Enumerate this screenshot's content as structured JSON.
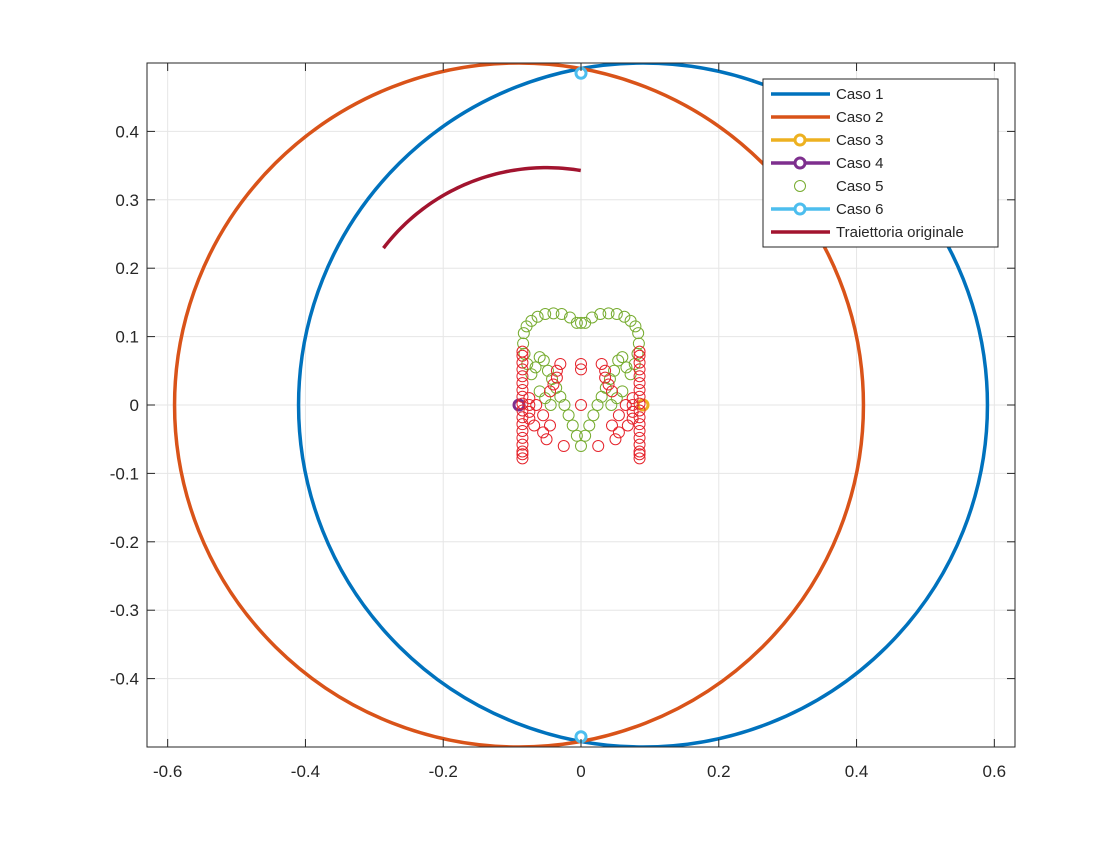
{
  "chart_data": {
    "type": "line",
    "title": "",
    "xlabel": "",
    "ylabel": "",
    "xlim": [
      -0.63,
      0.63
    ],
    "ylim": [
      -0.5,
      0.5
    ],
    "x_ticks": [
      -0.6,
      -0.4,
      -0.2,
      0,
      0.2,
      0.4,
      0.6
    ],
    "y_ticks": [
      -0.4,
      -0.3,
      -0.2,
      -0.1,
      0,
      0.1,
      0.2,
      0.3,
      0.4
    ],
    "x_tick_labels": [
      "-0.6",
      "-0.4",
      "-0.2",
      "0",
      "0.2",
      "0.4",
      "0.6"
    ],
    "y_tick_labels": [
      "-0.4",
      "-0.3",
      "-0.2",
      "-0.1",
      "0",
      "0.1",
      "0.2",
      "0.3",
      "0.4"
    ],
    "grid": true,
    "legend_position": "top-right",
    "series": [
      {
        "name": "Caso 1",
        "color": "#0072BD",
        "style": "line",
        "shape": "circle",
        "center": [
          0.09,
          0
        ],
        "radius": 0.5
      },
      {
        "name": "Caso 2",
        "color": "#D95319",
        "style": "line",
        "shape": "circle",
        "center": [
          -0.09,
          0
        ],
        "radius": 0.5
      },
      {
        "name": "Caso 3",
        "color": "#EDB120",
        "style": "line-marker",
        "x": [
          0.09
        ],
        "y": [
          0
        ]
      },
      {
        "name": "Caso 4",
        "color": "#7E2F8E",
        "style": "line-marker",
        "x": [
          -0.09
        ],
        "y": [
          0
        ]
      },
      {
        "name": "Caso 5",
        "color": "#77AC30",
        "style": "markers",
        "x": [
          0,
          -0.006,
          -0.012,
          -0.018,
          -0.024,
          -0.03,
          -0.036,
          -0.042,
          -0.048,
          -0.054,
          -0.06,
          -0.066,
          -0.072,
          -0.078,
          -0.082,
          -0.084,
          -0.083,
          -0.079,
          -0.072,
          -0.063,
          -0.052,
          -0.04,
          -0.028,
          -0.016,
          -0.006,
          0,
          0.006,
          0.016,
          0.028,
          0.04,
          0.052,
          0.063,
          0.072,
          0.079,
          0.083,
          0.084,
          0.082,
          0.078,
          0.072,
          0.066,
          0.06,
          0.054,
          0.048,
          0.042,
          0.036,
          0.03,
          0.024,
          0.018,
          0.012,
          0.006,
          -0.06,
          -0.052,
          -0.044,
          0.044,
          0.052,
          0.06
        ],
        "y": [
          -0.06,
          -0.045,
          -0.03,
          -0.015,
          0,
          0.012,
          0.025,
          0.038,
          0.05,
          0.065,
          0.07,
          0.055,
          0.045,
          0.06,
          0.075,
          0.09,
          0.105,
          0.115,
          0.123,
          0.129,
          0.133,
          0.134,
          0.133,
          0.128,
          0.12,
          0.12,
          0.12,
          0.128,
          0.133,
          0.134,
          0.133,
          0.129,
          0.123,
          0.115,
          0.105,
          0.09,
          0.075,
          0.06,
          0.045,
          0.055,
          0.07,
          0.065,
          0.05,
          0.038,
          0.025,
          0.012,
          0,
          -0.015,
          -0.03,
          -0.045,
          0.02,
          0.01,
          0.0,
          0.0,
          0.01,
          0.02
        ]
      },
      {
        "name": "Caso 6",
        "color": "#4DBEEE",
        "style": "line-marker",
        "x": [
          0,
          0
        ],
        "y": [
          0.485,
          -0.485
        ]
      },
      {
        "name": "Traiettoria originale",
        "color": "#A2142F",
        "style": "line",
        "shape": "arc",
        "center": [
          -0.05,
          0.05
        ],
        "radius": 0.297,
        "arc_from": [
          -0.314,
          0.25
        ],
        "arc_to": [
          0,
          0.345
        ]
      },
      {
        "name": "",
        "color": "#E5242C",
        "style": "markers",
        "x": [
          -0.085,
          -0.085,
          -0.085,
          -0.085,
          -0.085,
          -0.085,
          -0.085,
          -0.085,
          -0.085,
          -0.085,
          -0.085,
          -0.085,
          -0.085,
          -0.085,
          -0.085,
          -0.085,
          -0.085,
          -0.085,
          -0.075,
          -0.075,
          -0.075,
          -0.075,
          -0.068,
          -0.055,
          -0.05,
          -0.045,
          -0.04,
          -0.035,
          -0.03,
          -0.025,
          -0.035,
          -0.045,
          -0.055,
          -0.065,
          0.085,
          0.085,
          0.085,
          0.085,
          0.085,
          0.085,
          0.085,
          0.085,
          0.085,
          0.085,
          0.085,
          0.085,
          0.085,
          0.085,
          0.085,
          0.085,
          0.085,
          0.085,
          0.075,
          0.075,
          0.075,
          0.075,
          0.068,
          0.055,
          0.05,
          0.045,
          0.04,
          0.035,
          0.03,
          0.025,
          0.035,
          0.045,
          0.055,
          0.065,
          0,
          0,
          0
        ],
        "y": [
          -0.078,
          -0.068,
          -0.058,
          -0.048,
          -0.038,
          -0.028,
          -0.018,
          -0.008,
          0.002,
          0.012,
          0.022,
          0.032,
          0.042,
          0.052,
          0.062,
          0.072,
          0.078,
          -0.072,
          0.0,
          -0.01,
          0.01,
          -0.02,
          -0.03,
          -0.04,
          -0.05,
          0.02,
          0.03,
          0.04,
          0.06,
          -0.06,
          0.05,
          -0.03,
          -0.015,
          0.0,
          -0.078,
          -0.068,
          -0.058,
          -0.048,
          -0.038,
          -0.028,
          -0.018,
          -0.008,
          0.002,
          0.012,
          0.022,
          0.032,
          0.042,
          0.052,
          0.062,
          0.072,
          0.078,
          -0.072,
          0.0,
          -0.01,
          0.01,
          -0.02,
          -0.03,
          -0.04,
          -0.05,
          0.02,
          0.03,
          0.04,
          0.06,
          -0.06,
          0.05,
          -0.03,
          -0.015,
          0.0,
          0,
          0.052,
          0.06
        ]
      }
    ]
  }
}
